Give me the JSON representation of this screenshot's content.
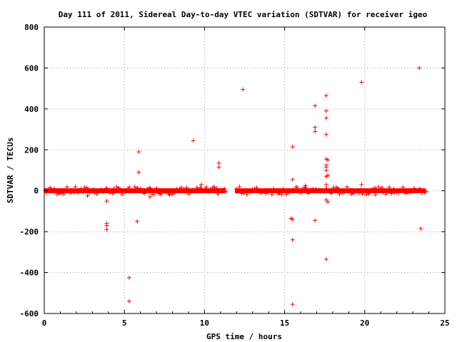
{
  "chart_data": {
    "type": "scatter",
    "title": "Day 111 of 2011, Sidereal Day-to-day VTEC variation (SDTVAR) for receiver igeo",
    "xlabel": "GPS time / hours",
    "ylabel": "SDTVAR / TECUs",
    "xlim": [
      0,
      25
    ],
    "ylim": [
      -600,
      800
    ],
    "xticks": [
      "0",
      "5",
      "10",
      "15",
      "20",
      "25"
    ],
    "yticks": [
      "-600",
      "-400",
      "-200",
      "0",
      "200",
      "400",
      "600",
      "800"
    ],
    "grid": true,
    "marker": "+",
    "color": "#ff0000",
    "dense_band": {
      "segments": [
        [
          0.0,
          11.3
        ],
        [
          11.9,
          23.8
        ]
      ],
      "y_spread": 12
    },
    "series": [
      {
        "points": [
          [
            3.9,
            -160
          ],
          [
            3.9,
            -170
          ],
          [
            3.9,
            -190
          ],
          [
            3.9,
            -50
          ],
          [
            3.9,
            10
          ],
          [
            5.9,
            190
          ],
          [
            5.9,
            90
          ],
          [
            5.8,
            -150
          ],
          [
            5.3,
            -425
          ],
          [
            5.3,
            -540
          ],
          [
            6.6,
            -30
          ],
          [
            9.3,
            245
          ],
          [
            9.8,
            30
          ],
          [
            9.8,
            10
          ],
          [
            10.9,
            135
          ],
          [
            10.9,
            115
          ],
          [
            12.4,
            495
          ],
          [
            15.5,
            215
          ],
          [
            15.5,
            55
          ],
          [
            15.4,
            -135
          ],
          [
            15.5,
            -140
          ],
          [
            15.5,
            -240
          ],
          [
            15.5,
            -555
          ],
          [
            16.3,
            25
          ],
          [
            16.3,
            15
          ],
          [
            16.9,
            415
          ],
          [
            16.9,
            310
          ],
          [
            16.9,
            290
          ],
          [
            16.9,
            -145
          ],
          [
            17.6,
            465
          ],
          [
            17.6,
            390
          ],
          [
            17.6,
            355
          ],
          [
            17.6,
            275
          ],
          [
            17.6,
            155
          ],
          [
            17.7,
            150
          ],
          [
            17.6,
            125
          ],
          [
            17.6,
            115
          ],
          [
            17.6,
            100
          ],
          [
            17.7,
            75
          ],
          [
            17.6,
            70
          ],
          [
            17.6,
            30
          ],
          [
            17.6,
            10
          ],
          [
            17.6,
            -45
          ],
          [
            17.7,
            -55
          ],
          [
            17.6,
            -335
          ],
          [
            19.8,
            530
          ],
          [
            19.8,
            30
          ],
          [
            23.4,
            600
          ],
          [
            23.5,
            -185
          ],
          [
            0.9,
            -15
          ],
          [
            2.7,
            -25
          ],
          [
            7.3,
            -10
          ]
        ]
      }
    ]
  }
}
